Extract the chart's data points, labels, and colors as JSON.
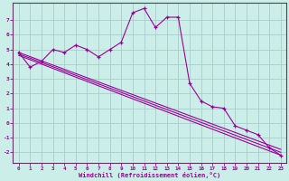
{
  "xlabel": "Windchill (Refroidissement éolien,°C)",
  "background_color": "#cceee8",
  "grid_color": "#aacccc",
  "line_color": "#990099",
  "spine_color": "#663366",
  "xlim": [
    -0.5,
    23.5
  ],
  "ylim": [
    -2.7,
    8.2
  ],
  "yticks": [
    -2,
    -1,
    0,
    1,
    2,
    3,
    4,
    5,
    6,
    7
  ],
  "xticks": [
    0,
    1,
    2,
    3,
    4,
    5,
    6,
    7,
    8,
    9,
    10,
    11,
    12,
    13,
    14,
    15,
    16,
    17,
    18,
    19,
    20,
    21,
    22,
    23
  ],
  "series1_x": [
    0,
    1,
    2,
    3,
    4,
    5,
    6,
    7,
    8,
    9,
    10,
    11,
    12,
    13,
    14,
    15,
    16,
    17,
    18,
    19,
    20,
    21,
    22,
    23
  ],
  "series1_y": [
    4.8,
    3.8,
    4.2,
    5.0,
    4.8,
    5.3,
    5.0,
    4.5,
    5.0,
    5.5,
    7.5,
    7.8,
    6.5,
    7.2,
    7.2,
    2.7,
    1.5,
    1.1,
    1.0,
    -0.2,
    -0.5,
    -0.8,
    -1.7,
    -2.2
  ],
  "series2_x": [
    0,
    23
  ],
  "series2_y": [
    4.8,
    -1.8
  ],
  "series3_x": [
    0,
    23
  ],
  "series3_y": [
    4.7,
    -2.0
  ],
  "series4_x": [
    0,
    23
  ],
  "series4_y": [
    4.6,
    -2.2
  ]
}
